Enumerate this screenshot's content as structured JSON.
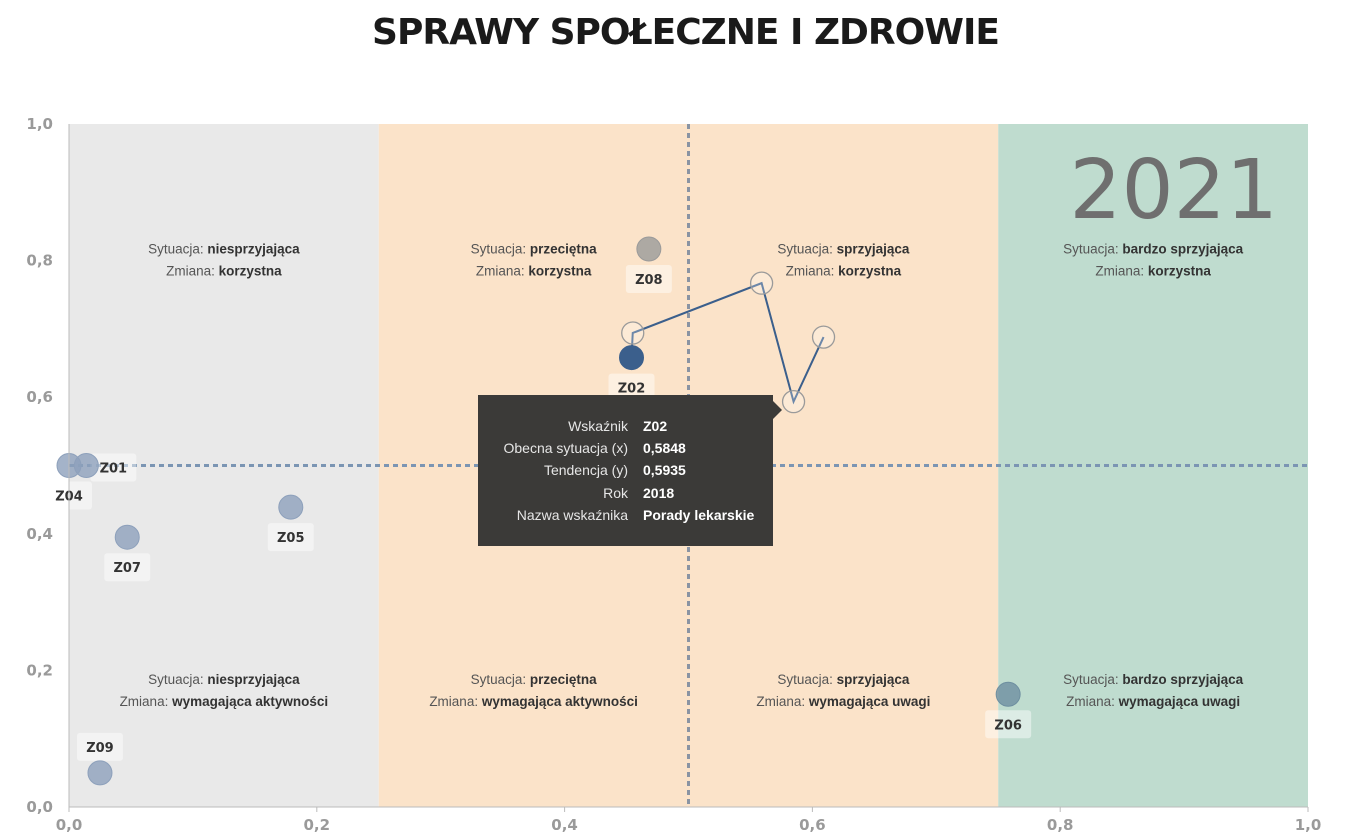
{
  "title": "SPRAWY SPOŁECZNE I ZDROWIE",
  "chart_data": {
    "type": "scatter",
    "year_label": "2021",
    "xlim": [
      0,
      1
    ],
    "ylim": [
      0,
      1
    ],
    "x_ticks": [
      "0,0",
      "0,2",
      "0,4",
      "0,6",
      "0,8",
      "1,0"
    ],
    "y_ticks": [
      "0,0",
      "0,2",
      "0,4",
      "0,6",
      "0,8",
      "1,0"
    ],
    "reference_lines": {
      "x": 0.5,
      "y": 0.5
    },
    "bands": [
      {
        "x0": 0,
        "x1": 0.25,
        "color": "#e9e9e9"
      },
      {
        "x0": 0.25,
        "x1": 0.75,
        "color": "#fbe3c9"
      },
      {
        "x0": 0.75,
        "x1": 1,
        "color": "#bfdccf"
      }
    ],
    "region_labels": [
      {
        "x": 0.125,
        "y": 0.8,
        "situation_key": "Sytuacja:",
        "situation": "niesprzyjająca",
        "change_key": "Zmiana:",
        "change": "korzystna"
      },
      {
        "x": 0.375,
        "y": 0.8,
        "situation_key": "Sytuacja:",
        "situation": "przeciętna",
        "change_key": "Zmiana:",
        "change": "korzystna"
      },
      {
        "x": 0.625,
        "y": 0.8,
        "situation_key": "Sytuacja:",
        "situation": "sprzyjająca",
        "change_key": "Zmiana:",
        "change": "korzystna"
      },
      {
        "x": 0.875,
        "y": 0.8,
        "situation_key": "Sytuacja:",
        "situation": "bardzo sprzyjająca",
        "change_key": "Zmiana:",
        "change": "korzystna"
      },
      {
        "x": 0.125,
        "y": 0.17,
        "situation_key": "Sytuacja:",
        "situation": "niesprzyjająca",
        "change_key": "Zmiana:",
        "change": "wymagająca aktywności"
      },
      {
        "x": 0.375,
        "y": 0.17,
        "situation_key": "Sytuacja:",
        "situation": "przeciętna",
        "change_key": "Zmiana:",
        "change": "wymagająca aktywności"
      },
      {
        "x": 0.625,
        "y": 0.17,
        "situation_key": "Sytuacja:",
        "situation": "sprzyjająca",
        "change_key": "Zmiana:",
        "change": "wymagająca uwagi"
      },
      {
        "x": 0.875,
        "y": 0.17,
        "situation_key": "Sytuacja:",
        "situation": "bardzo sprzyjająca",
        "change_key": "Zmiana:",
        "change": "wymagająca uwagi"
      }
    ],
    "points": [
      {
        "label": "Z01",
        "x": 0.014,
        "y": 0.5,
        "color": "#8da0bb",
        "label_pos": "right"
      },
      {
        "label": "Z04",
        "x": 0.0,
        "y": 0.5,
        "color": "#8da0bb",
        "label_pos": "below"
      },
      {
        "label": "Z05",
        "x": 0.179,
        "y": 0.439,
        "color": "#8da0bb",
        "label_pos": "below"
      },
      {
        "label": "Z07",
        "x": 0.047,
        "y": 0.395,
        "color": "#8da0bb",
        "label_pos": "below"
      },
      {
        "label": "Z08",
        "x": 0.468,
        "y": 0.817,
        "color": "#9a9a9a",
        "label_pos": "below"
      },
      {
        "label": "Z09",
        "x": 0.025,
        "y": 0.05,
        "color": "#8da0bb",
        "label_pos": "above"
      },
      {
        "label": "Z06",
        "x": 0.758,
        "y": 0.165,
        "color": "#6e8fa0",
        "label_pos": "below"
      },
      {
        "label": "Z02",
        "x": 0.454,
        "y": 0.658,
        "color": "#3b5f8c",
        "label_pos": "below"
      }
    ],
    "trail": {
      "indicator": "Z02",
      "color": "#3b5f8c",
      "points": [
        {
          "x": 0.454,
          "y": 0.658
        },
        {
          "x": 0.455,
          "y": 0.694
        },
        {
          "x": 0.559,
          "y": 0.767
        },
        {
          "x": 0.5848,
          "y": 0.5935
        },
        {
          "x": 0.609,
          "y": 0.688
        }
      ]
    },
    "tooltip": {
      "rows": [
        {
          "key": "Wskaźnik",
          "value": "Z02"
        },
        {
          "key": "Obecna sytuacja (x)",
          "value": "0,5848"
        },
        {
          "key": "Tendencja (y)",
          "value": "0,5935"
        },
        {
          "key": "Rok",
          "value": "2018"
        },
        {
          "key": "Nazwa wskaźnika",
          "value": "Porady lekarskie"
        }
      ]
    }
  }
}
